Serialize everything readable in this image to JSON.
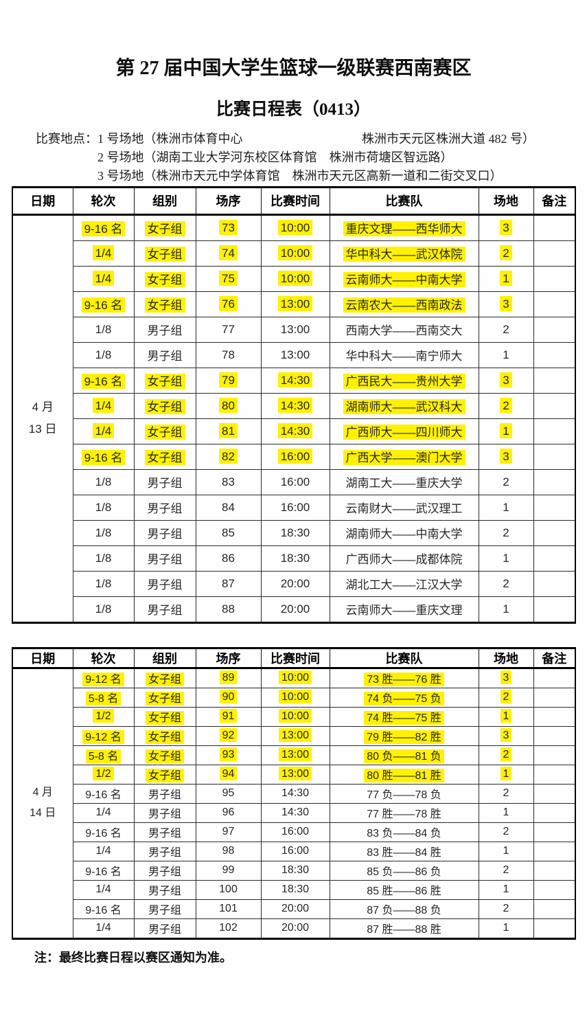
{
  "title": "第 27 届中国大学生篮球一级联赛西南赛区",
  "subtitle": "比赛日程表（0413）",
  "locations": {
    "label": "比赛地点：",
    "items": [
      {
        "venue": "1 号场地（株洲市体育中心",
        "address": "株洲市天元区株洲大道 482 号）"
      },
      {
        "venue": "2 号场地（湖南工业大学河东校区体育馆",
        "address": "株洲市荷塘区智远路）"
      },
      {
        "venue": "3 号场地（株洲市天元中学体育馆",
        "address": "株洲市天元区高新一道和二街交叉口）"
      }
    ]
  },
  "columns": [
    "日期",
    "轮次",
    "组别",
    "场序",
    "比赛时间",
    "比赛队",
    "场地",
    "备注"
  ],
  "highlight_color": "#fff100",
  "tables": [
    {
      "date": [
        "4 月",
        "13 日"
      ],
      "rows": [
        {
          "round": "9-16 名",
          "group": "女子组",
          "no": "73",
          "time": "10:00",
          "teams": "重庆文理——西华师大",
          "venue": "3",
          "note": "",
          "hl": true
        },
        {
          "round": "1/4",
          "group": "女子组",
          "no": "74",
          "time": "10:00",
          "teams": "华中科大——武汉体院",
          "venue": "2",
          "note": "",
          "hl": true
        },
        {
          "round": "1/4",
          "group": "女子组",
          "no": "75",
          "time": "10:00",
          "teams": "云南师大——中南大学",
          "venue": "1",
          "note": "",
          "hl": true
        },
        {
          "round": "9-16 名",
          "group": "女子组",
          "no": "76",
          "time": "13:00",
          "teams": "云南农大——西南政法",
          "venue": "3",
          "note": "",
          "hl": true
        },
        {
          "round": "1/8",
          "group": "男子组",
          "no": "77",
          "time": "13:00",
          "teams": "西南大学——西南交大",
          "venue": "2",
          "note": "",
          "hl": false
        },
        {
          "round": "1/8",
          "group": "男子组",
          "no": "78",
          "time": "13:00",
          "teams": "华中科大——南宁师大",
          "venue": "1",
          "note": "",
          "hl": false
        },
        {
          "round": "9-16 名",
          "group": "女子组",
          "no": "79",
          "time": "14:30",
          "teams": "广西民大——贵州大学",
          "venue": "3",
          "note": "",
          "hl": true
        },
        {
          "round": "1/4",
          "group": "女子组",
          "no": "80",
          "time": "14:30",
          "teams": "湖南师大——武汉科大",
          "venue": "2",
          "note": "",
          "hl": true
        },
        {
          "round": "1/4",
          "group": "女子组",
          "no": "81",
          "time": "14:30",
          "teams": "广西师大——四川师大",
          "venue": "1",
          "note": "",
          "hl": true
        },
        {
          "round": "9-16 名",
          "group": "女子组",
          "no": "82",
          "time": "16:00",
          "teams": "广西大学——澳门大学",
          "venue": "3",
          "note": "",
          "hl": true
        },
        {
          "round": "1/8",
          "group": "男子组",
          "no": "83",
          "time": "16:00",
          "teams": "湖南工大——重庆大学",
          "venue": "2",
          "note": "",
          "hl": false
        },
        {
          "round": "1/8",
          "group": "男子组",
          "no": "84",
          "time": "16:00",
          "teams": "云南财大——武汉理工",
          "venue": "1",
          "note": "",
          "hl": false
        },
        {
          "round": "1/8",
          "group": "男子组",
          "no": "85",
          "time": "18:30",
          "teams": "湖南师大——中南大学",
          "venue": "2",
          "note": "",
          "hl": false
        },
        {
          "round": "1/8",
          "group": "男子组",
          "no": "86",
          "time": "18:30",
          "teams": "广西师大——成都体院",
          "venue": "1",
          "note": "",
          "hl": false
        },
        {
          "round": "1/8",
          "group": "男子组",
          "no": "87",
          "time": "20:00",
          "teams": "湖北工大——江汉大学",
          "venue": "2",
          "note": "",
          "hl": false
        },
        {
          "round": "1/8",
          "group": "男子组",
          "no": "88",
          "time": "20:00",
          "teams": "云南师大——重庆文理",
          "venue": "1",
          "note": "",
          "hl": false
        }
      ]
    },
    {
      "date": [
        "4 月",
        "14 日"
      ],
      "rows": [
        {
          "round": "9-12 名",
          "group": "女子组",
          "no": "89",
          "time": "10:00",
          "teams": "73 胜——76 胜",
          "venue": "3",
          "note": "",
          "hl": true
        },
        {
          "round": "5-8 名",
          "group": "女子组",
          "no": "90",
          "time": "10:00",
          "teams": "74 负——75 负",
          "venue": "2",
          "note": "",
          "hl": true
        },
        {
          "round": "1/2",
          "group": "女子组",
          "no": "91",
          "time": "10:00",
          "teams": "74 胜——75 胜",
          "venue": "1",
          "note": "",
          "hl": true
        },
        {
          "round": "9-12 名",
          "group": "女子组",
          "no": "92",
          "time": "13:00",
          "teams": "79 胜——82 胜",
          "venue": "3",
          "note": "",
          "hl": true
        },
        {
          "round": "5-8 名",
          "group": "女子组",
          "no": "93",
          "time": "13:00",
          "teams": "80 负——81 负",
          "venue": "2",
          "note": "",
          "hl": true
        },
        {
          "round": "1/2",
          "group": "女子组",
          "no": "94",
          "time": "13:00",
          "teams": "80 胜——81 胜",
          "venue": "1",
          "note": "",
          "hl": true
        },
        {
          "round": "9-16 名",
          "group": "男子组",
          "no": "95",
          "time": "14:30",
          "teams": "77 负——78 负",
          "venue": "2",
          "note": "",
          "hl": false
        },
        {
          "round": "1/4",
          "group": "男子组",
          "no": "96",
          "time": "14:30",
          "teams": "77 胜——78 胜",
          "venue": "1",
          "note": "",
          "hl": false
        },
        {
          "round": "9-16 名",
          "group": "男子组",
          "no": "97",
          "time": "16:00",
          "teams": "83 负——84 负",
          "venue": "2",
          "note": "",
          "hl": false
        },
        {
          "round": "1/4",
          "group": "男子组",
          "no": "98",
          "time": "16:00",
          "teams": "83 胜——84 胜",
          "venue": "1",
          "note": "",
          "hl": false
        },
        {
          "round": "9-16 名",
          "group": "男子组",
          "no": "99",
          "time": "18:30",
          "teams": "85 负——86 负",
          "venue": "2",
          "note": "",
          "hl": false
        },
        {
          "round": "1/4",
          "group": "男子组",
          "no": "100",
          "time": "18:30",
          "teams": "85 胜——86 胜",
          "venue": "1",
          "note": "",
          "hl": false
        },
        {
          "round": "9-16 名",
          "group": "男子组",
          "no": "101",
          "time": "20:00",
          "teams": "87 负——88 负",
          "venue": "2",
          "note": "",
          "hl": false
        },
        {
          "round": "1/4",
          "group": "男子组",
          "no": "102",
          "time": "20:00",
          "teams": "87 胜——88 胜",
          "venue": "1",
          "note": "",
          "hl": false
        }
      ]
    }
  ],
  "note": "注：最终比赛日程以赛区通知为准。"
}
